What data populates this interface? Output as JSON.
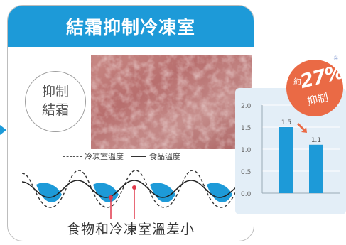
{
  "panel": {
    "title": "結霜抑制冷凍室",
    "circle_line1": "抑制",
    "circle_line2": "結霜",
    "legend_freezer": "冷凍室溫度",
    "legend_food": "食品溫度",
    "caption": "食物和冷凍室溫差小"
  },
  "badge": {
    "prefix": "約",
    "percent": "27%",
    "suffix": "抑制",
    "note": "※"
  },
  "colors": {
    "brand_blue": "#1d9ad8",
    "badge_orange": "#ea6a45",
    "chart_bg": "#e3eef7",
    "pointer_red": "#e0394a"
  },
  "chart_data": {
    "type": "bar",
    "categories": [
      "",
      ""
    ],
    "values": [
      1.5,
      1.1
    ],
    "value_labels": [
      "1.5",
      "1.1"
    ],
    "ylim": [
      0,
      2.0
    ],
    "yticks": [
      0.0,
      0.5,
      1.0,
      1.5,
      2.0
    ],
    "ytick_labels": [
      "0.0",
      "0.5",
      "1.0",
      "1.5",
      "2.0"
    ],
    "grid": true,
    "colors": [
      "#1d9ad8",
      "#1d9ad8"
    ],
    "annotation": "down-arrow between bars"
  }
}
